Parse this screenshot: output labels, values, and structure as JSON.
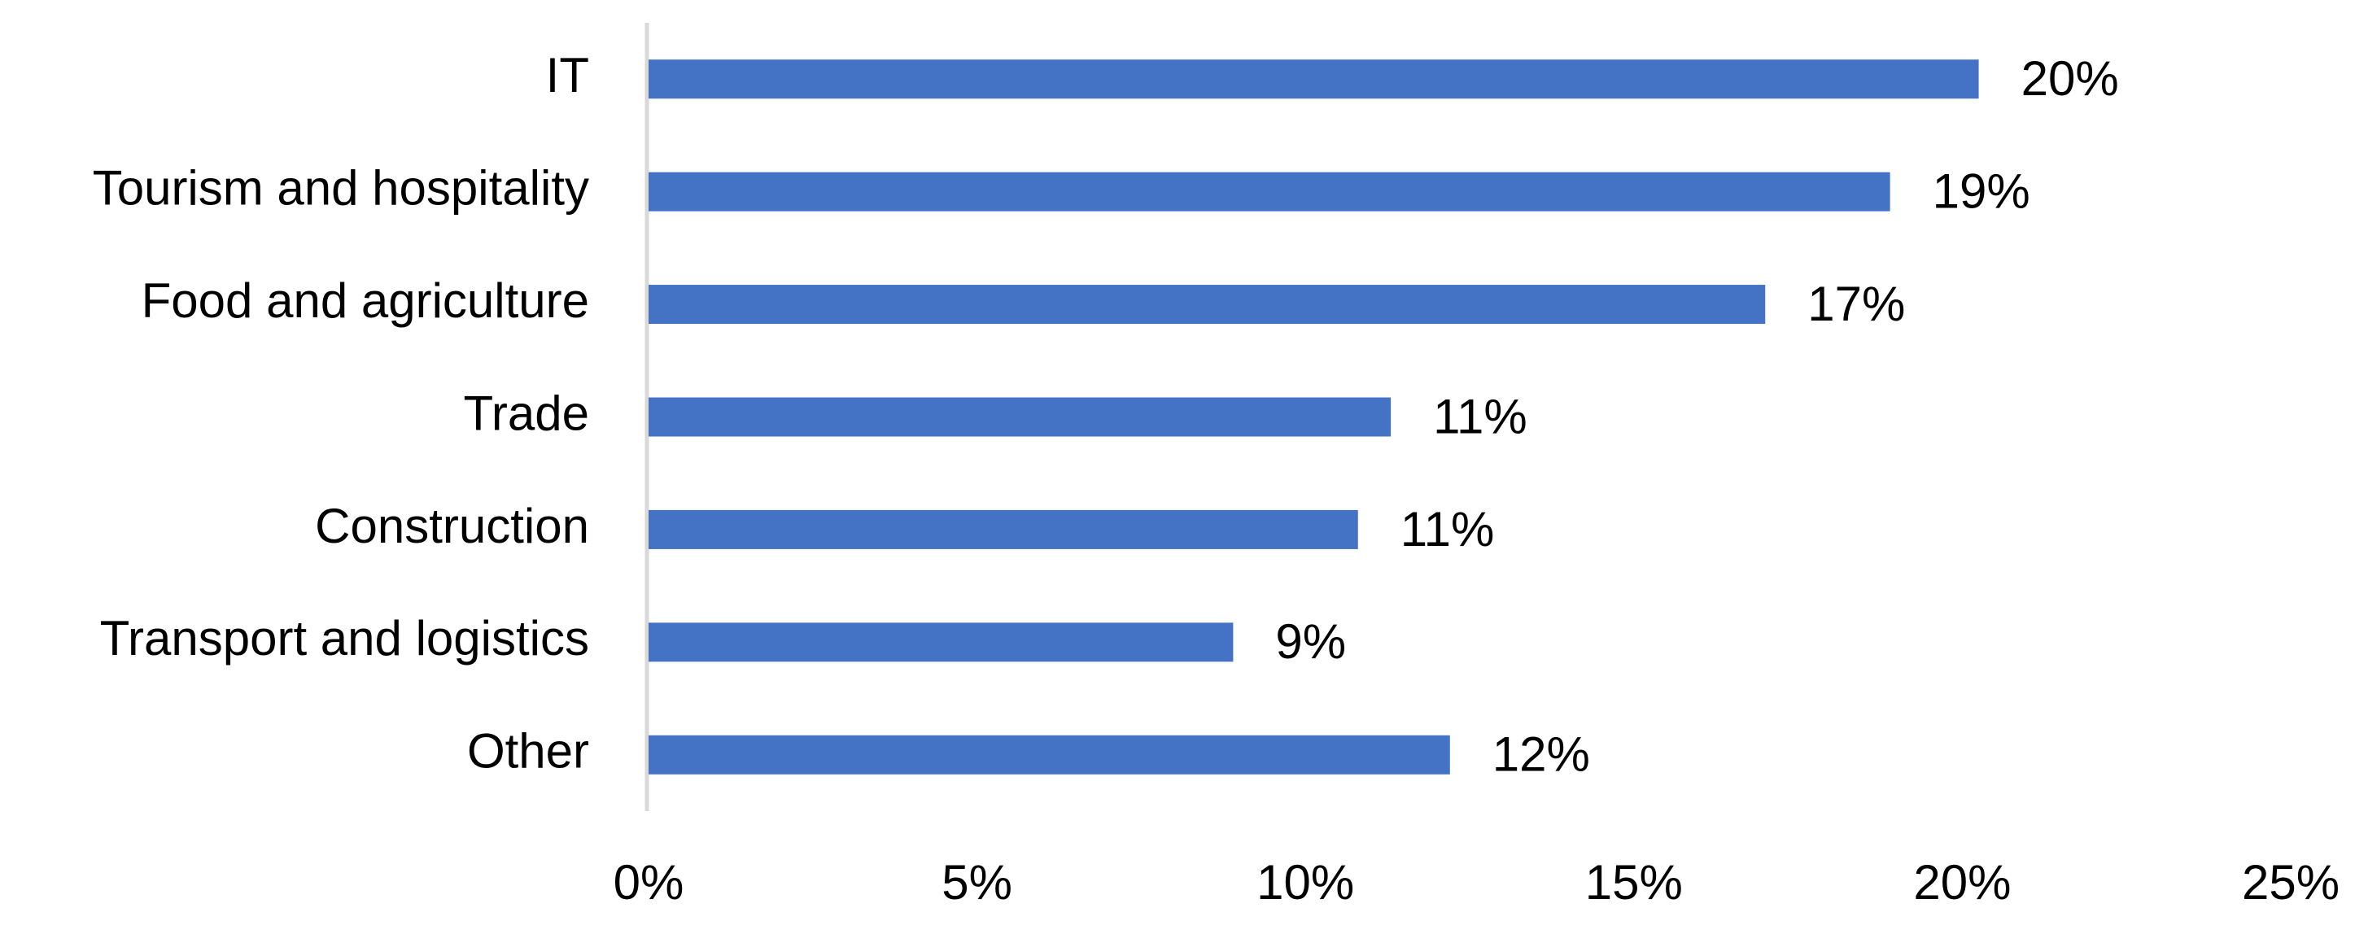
{
  "chart_data": {
    "type": "hbar",
    "categories": [
      "IT",
      "Tourism and hospitality",
      "Food and agriculture",
      "Trade",
      "Construction",
      "Transport and logistics",
      "Other"
    ],
    "values": [
      20.25,
      18.9,
      17.0,
      11.3,
      10.8,
      8.9,
      12.2
    ],
    "value_labels": [
      "20%",
      "19%",
      "17%",
      "11%",
      "11%",
      "9%",
      "12%"
    ],
    "color": "#4472c4",
    "xlim": [
      0,
      25
    ],
    "xticks": [
      {
        "value": 0,
        "label": "0%"
      },
      {
        "value": 5,
        "label": "5%"
      },
      {
        "value": 10,
        "label": "10%"
      },
      {
        "value": 15,
        "label": "15%"
      },
      {
        "value": 20,
        "label": "20%"
      },
      {
        "value": 25,
        "label": "25%"
      }
    ],
    "grid": false
  }
}
